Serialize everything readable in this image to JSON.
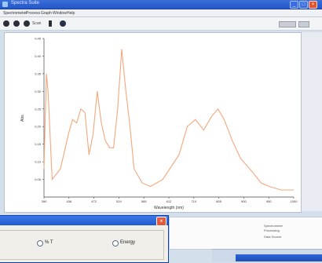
{
  "window": {
    "title": "Spectra Suite"
  },
  "menu": {
    "items": [
      "Spectrometer",
      "Process",
      "Graph",
      "Window",
      "Help"
    ]
  },
  "toolbar": {
    "scan_label": "Scan"
  },
  "chart_data": {
    "type": "line",
    "xlabel": "Wavelength (nm)",
    "ylabel": "Abs.",
    "xlim": [
      390,
      1000
    ],
    "ylim": [
      0,
      0.45
    ],
    "xticks": [
      "390",
      "436",
      "472",
      "519",
      "565",
      "612",
      "710",
      "805",
      "900",
      "950",
      "1000"
    ],
    "yticks": [
      "0.05",
      "0.10",
      "0.15",
      "0.20",
      "0.25",
      "0.30",
      "0.35",
      "0.40",
      "0.45"
    ],
    "series": [
      {
        "name": "Abs.",
        "color": "#f4a77b",
        "x": [
          390,
          396,
          400,
          410,
          430,
          450,
          460,
          470,
          480,
          490,
          500,
          510,
          520,
          530,
          540,
          550,
          560,
          570,
          580,
          590,
          600,
          610,
          630,
          650,
          680,
          720,
          740,
          760,
          780,
          800,
          815,
          830,
          850,
          870,
          900,
          920,
          940,
          970,
          1000
        ],
        "y": [
          0.08,
          0.35,
          0.3,
          0.05,
          0.08,
          0.18,
          0.22,
          0.21,
          0.25,
          0.24,
          0.12,
          0.18,
          0.3,
          0.21,
          0.16,
          0.14,
          0.14,
          0.25,
          0.42,
          0.3,
          0.2,
          0.08,
          0.04,
          0.03,
          0.05,
          0.12,
          0.2,
          0.22,
          0.19,
          0.23,
          0.25,
          0.22,
          0.16,
          0.11,
          0.07,
          0.04,
          0.03,
          0.02,
          0.02
        ]
      }
    ]
  },
  "info_panel": {
    "lines": [
      "Spectrometer",
      "Processing",
      "Data Source"
    ]
  },
  "dialog": {
    "radio_options": [
      "% T",
      "Energy"
    ]
  }
}
